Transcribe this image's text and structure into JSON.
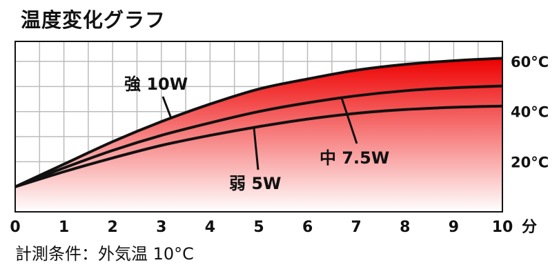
{
  "title": "温度変化グラフ",
  "caption": "計測条件：外気温 10°C",
  "chart_data": {
    "type": "area",
    "x": [
      0,
      1,
      2,
      3,
      4,
      5,
      6,
      7,
      8,
      9,
      10
    ],
    "x_unit": "分",
    "xlim": [
      0,
      10
    ],
    "ylim": [
      0,
      68
    ],
    "y_ticks": [
      20,
      40,
      60
    ],
    "y_tick_labels": [
      "20°C",
      "40°C",
      "60°C"
    ],
    "grid": true,
    "series": [
      {
        "name": "強 10W",
        "values": [
          10,
          19,
          28,
          36,
          43,
          49,
          53,
          56.5,
          58.8,
          60.3,
          61.3
        ]
      },
      {
        "name": "中 7.5W",
        "values": [
          10,
          17.5,
          24.5,
          30.5,
          35.5,
          40,
          43.5,
          46.3,
          48.3,
          49.5,
          50.2
        ]
      },
      {
        "name": "弱 5W",
        "values": [
          10,
          16,
          21.5,
          26.5,
          30.5,
          34,
          37,
          39.3,
          40.8,
          41.7,
          42.2
        ]
      }
    ],
    "colors": {
      "fill_top": "#ee0000",
      "fill_bottom": "#ffffff",
      "line": "#111111",
      "grid": "#bbbbbb"
    }
  }
}
